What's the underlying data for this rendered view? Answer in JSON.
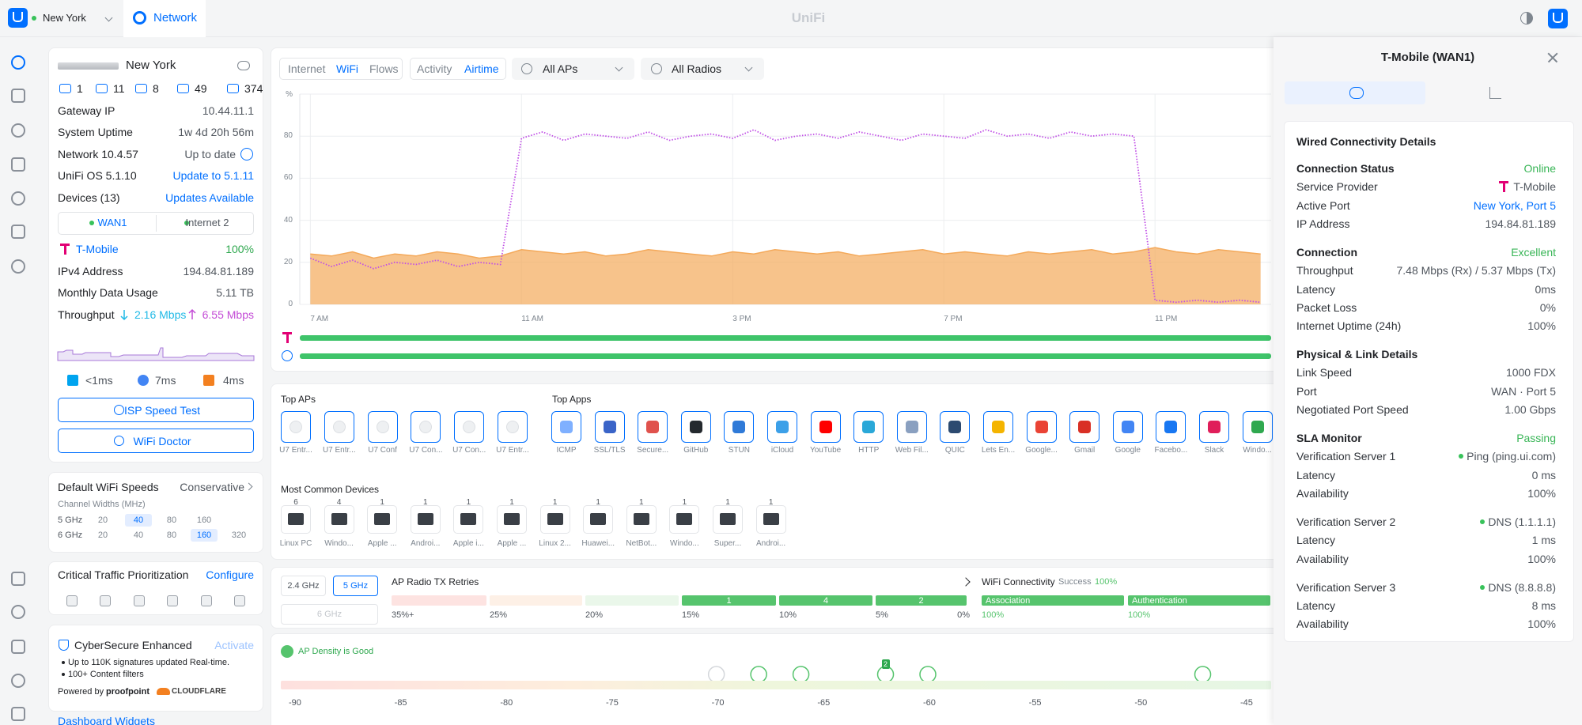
{
  "top_bar": {
    "site": "New York",
    "app": "Network",
    "brand": "UniFi"
  },
  "site": {
    "name": "New York",
    "counts": [
      "1",
      "11",
      "8",
      "49",
      "374"
    ],
    "rows": [
      {
        "label": "Gateway IP",
        "value": "10.44.11.1"
      },
      {
        "label": "System Uptime",
        "value": "1w 4d 20h 56m"
      },
      {
        "label": "Network 10.4.57",
        "value": "Up to date"
      },
      {
        "label": "UniFi OS 5.1.10",
        "link": "Update to 5.1.11"
      },
      {
        "label": "Devices (13)",
        "link": "Updates Available"
      }
    ],
    "wan_tabs": [
      "WAN1",
      "Internet 2"
    ],
    "isp": "T-Mobile",
    "isp_health": "100%",
    "rows2": [
      {
        "label": "IPv4 Address",
        "value": "194.84.81.189"
      },
      {
        "label": "Monthly Data Usage",
        "value": "5.11 TB"
      }
    ],
    "throughput": {
      "label": "Throughput",
      "down": "2.16 Mbps",
      "up": "6.55 Mbps"
    },
    "latencies": [
      "<1ms",
      "7ms",
      "4ms"
    ],
    "buttons": [
      "ISP Speed Test",
      "WiFi Doctor"
    ]
  },
  "wifi_speeds": {
    "title": "Default WiFi Speeds",
    "mode": "Conservative",
    "subtitle": "Channel Widths (MHz)",
    "bands": [
      {
        "band": "5 GHz",
        "widths": [
          "20",
          "40",
          "80",
          "160"
        ],
        "selected": "40"
      },
      {
        "band": "6 GHz",
        "widths": [
          "20",
          "40",
          "80",
          "160",
          "320"
        ],
        "selected": "160"
      }
    ]
  },
  "traffic": {
    "title": "Critical Traffic Prioritization",
    "action": "Configure"
  },
  "cybersecure": {
    "title": "CyberSecure Enhanced",
    "action": "Activate",
    "bullets": [
      "Up to 110K signatures updated Real-time.",
      "100+ Content filters"
    ],
    "powered_by": "Powered by",
    "partners": [
      "proofpoint",
      "CLOUDFLARE"
    ]
  },
  "dashboard_link": "Dashboard Widgets",
  "main": {
    "tab_groups": [
      [
        "Internet",
        "WiFi",
        "Flows"
      ],
      [
        "Activity",
        "Airtime"
      ]
    ],
    "active_tabs": [
      "WiFi",
      "Airtime"
    ],
    "filters": [
      "All APs",
      "All Radios"
    ]
  },
  "chart_data": {
    "type": "line",
    "y_label": "%",
    "x": [
      7,
      7.4,
      7.8,
      8.2,
      8.6,
      9,
      9.4,
      9.8,
      10.2,
      10.6,
      11,
      11.4,
      11.8,
      12.2,
      12.6,
      13,
      13.4,
      13.8,
      14.2,
      14.6,
      15,
      15.4,
      15.8,
      16.2,
      16.6,
      17,
      17.4,
      17.8,
      18.2,
      18.6,
      19,
      19.4,
      19.8,
      20.2,
      20.6,
      21,
      21.4,
      21.8,
      22.2,
      22.6,
      23,
      23.4,
      23.8,
      24.2,
      24.6,
      25
    ],
    "series": [
      {
        "color": "#f4a95a",
        "fill": true,
        "values": [
          24,
          23,
          25,
          22,
          24,
          23,
          25,
          24,
          22,
          23,
          26,
          25,
          24,
          25,
          23,
          24,
          26,
          25,
          24,
          23,
          25,
          24,
          26,
          25,
          24,
          25,
          23,
          24,
          25,
          26,
          24,
          25,
          24,
          23,
          25,
          24,
          25,
          26,
          24,
          25,
          27,
          25,
          24,
          26,
          25,
          24
        ]
      },
      {
        "color": "#c04ee6",
        "fill": false,
        "values": [
          22,
          18,
          21,
          17,
          20,
          19,
          21,
          18,
          20,
          19,
          79,
          82,
          78,
          81,
          80,
          79,
          82,
          78,
          80,
          81,
          79,
          83,
          78,
          80,
          81,
          79,
          82,
          80,
          78,
          81,
          80,
          79,
          83,
          80,
          81,
          79,
          82,
          80,
          81,
          80,
          2,
          1,
          2,
          1,
          2,
          1
        ]
      }
    ],
    "xlim": [
      6.8,
      25.2
    ],
    "ylim": [
      0,
      100
    ],
    "yticks": [
      0,
      20,
      40,
      60,
      80
    ],
    "xticks": [
      {
        "value": 7,
        "label": "7 AM"
      },
      {
        "value": 11,
        "label": "11 AM"
      },
      {
        "value": 15,
        "label": "3 PM"
      },
      {
        "value": 19,
        "label": "7 PM"
      },
      {
        "value": 23,
        "label": "11 PM"
      }
    ],
    "grid": true
  },
  "top_aps": {
    "title": "Top APs",
    "items": [
      "U7 Entr...",
      "U7 Entr...",
      "U7 Conf",
      "U7 Con...",
      "U7 Con...",
      "U7 Entr..."
    ]
  },
  "top_apps": {
    "title": "Top Apps",
    "items": [
      "ICMP",
      "SSL/TLS",
      "Secure...",
      "GitHub",
      "STUN",
      "iCloud",
      "YouTube",
      "HTTP",
      "Web Fil...",
      "QUIC",
      "Lets En...",
      "Google...",
      "Gmail",
      "Google",
      "Facebo...",
      "Slack",
      "Windo..."
    ]
  },
  "common_devices": {
    "title": "Most Common Devices",
    "items": [
      {
        "count": 6,
        "label": "Linux PC"
      },
      {
        "count": 4,
        "label": "Windo..."
      },
      {
        "count": 1,
        "label": "Apple ..."
      },
      {
        "count": 1,
        "label": "Androi..."
      },
      {
        "count": 1,
        "label": "Apple i..."
      },
      {
        "count": 1,
        "label": "Apple ..."
      },
      {
        "count": 1,
        "label": "Linux 2..."
      },
      {
        "count": 1,
        "label": "Huawei..."
      },
      {
        "count": 1,
        "label": "NetBot..."
      },
      {
        "count": 1,
        "label": "Windo..."
      },
      {
        "count": 1,
        "label": "Super..."
      },
      {
        "count": 1,
        "label": "Androi..."
      }
    ]
  },
  "radio": {
    "bands": [
      "2.4 GHz",
      "5 GHz",
      "6 GHz"
    ],
    "active_band": "5 GHz",
    "title": "AP Radio TX Retries",
    "buckets": [
      "35%+",
      "25%",
      "20%",
      "15%",
      "10%",
      "5%",
      "0%"
    ],
    "counts": [
      null,
      null,
      null,
      1,
      4,
      2
    ]
  },
  "connectivity": {
    "title": "WiFi Connectivity",
    "success_label": "Success",
    "success": "100%",
    "steps": [
      {
        "label": "Association",
        "value": "100%"
      },
      {
        "label": "Authentication",
        "value": "100%"
      }
    ]
  },
  "density": {
    "status": "AP Density is Good",
    "ticks": [
      -90,
      -85,
      -80,
      -75,
      -70,
      -65,
      -60,
      -55,
      -50,
      -45
    ],
    "aps": [
      -70,
      -68,
      -66,
      -62,
      -60,
      -47
    ],
    "badge": "2"
  },
  "detail": {
    "title": "T-Mobile (WAN1)",
    "card_title": "Wired Connectivity Details",
    "sections": [
      {
        "title": "Connection Status",
        "status": "Online",
        "rows": [
          {
            "label": "Service Provider",
            "value": "T-Mobile"
          },
          {
            "label": "Active Port",
            "link": "New York, Port 5"
          },
          {
            "label": "IP Address",
            "value": "194.84.81.189"
          }
        ]
      },
      {
        "title": "Connection",
        "status": "Excellent",
        "rows": [
          {
            "label": "Throughput",
            "value": "7.48 Mbps (Rx) / 5.37 Mbps (Tx)"
          },
          {
            "label": "Latency",
            "value": "0ms"
          },
          {
            "label": "Packet Loss",
            "value": "0%"
          },
          {
            "label": "Internet Uptime (24h)",
            "value": "100%"
          }
        ]
      },
      {
        "title": "Physical & Link Details",
        "rows": [
          {
            "label": "Link Speed",
            "value": "1000 FDX"
          },
          {
            "label": "Port",
            "value": "WAN · Port 5"
          },
          {
            "label": "Negotiated Port Speed",
            "value": "1.00 Gbps"
          }
        ]
      },
      {
        "title": "SLA Monitor",
        "status": "Passing",
        "rows": [
          {
            "label": "Verification Server 1",
            "value": "Ping (ping.ui.com)"
          },
          {
            "label": "Latency",
            "value": "0 ms"
          },
          {
            "label": "Availability",
            "value": "100%"
          }
        ]
      },
      {
        "rows": [
          {
            "label": "Verification Server 2",
            "value": "DNS (1.1.1.1)"
          },
          {
            "label": "Latency",
            "value": "1 ms"
          },
          {
            "label": "Availability",
            "value": "100%"
          }
        ]
      },
      {
        "rows": [
          {
            "label": "Verification Server 3",
            "value": "DNS (8.8.8.8)"
          },
          {
            "label": "Latency",
            "value": "8 ms"
          },
          {
            "label": "Availability",
            "value": "100%"
          }
        ]
      }
    ]
  }
}
